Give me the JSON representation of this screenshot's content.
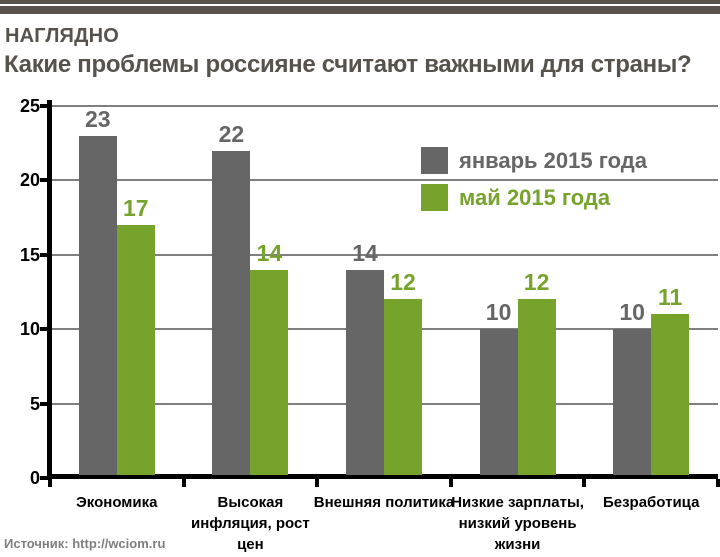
{
  "header": {
    "kicker": "НАГЛЯДНО",
    "title": "Какие проблемы россияне считают важными для страны?",
    "text_color": "#57524c"
  },
  "footer": {
    "source": "Источник: http://wciom.ru"
  },
  "colors": {
    "background": "#ffffff",
    "header_bars": "#57524c",
    "axis": "#000000",
    "gridline": "#7f7f7f",
    "source_text": "#7f7f7f"
  },
  "chart_data": {
    "type": "bar",
    "title": "Какие проблемы россияне считают важными для страны?",
    "categories": [
      "Экономика",
      "Высокая инфляция, рост цен",
      "Внешняя политика",
      "Низкие зарплаты, низкий уровень жизни",
      "Безработица"
    ],
    "category_lines": [
      [
        "Экономика"
      ],
      [
        "Высокая",
        "инфляция, рост",
        "цен"
      ],
      [
        "Внешняя политика"
      ],
      [
        "Низкие зарплаты,",
        "низкий уровень",
        "жизни"
      ],
      [
        "Безработица"
      ]
    ],
    "series": [
      {
        "name": "январь 2015 года",
        "color": "#666666",
        "values": [
          23,
          22,
          14,
          10,
          10
        ]
      },
      {
        "name": "май 2015 года",
        "color": "#76a32c",
        "values": [
          17,
          14,
          12,
          12,
          11
        ]
      }
    ],
    "ylim": [
      0,
      25
    ],
    "yticks": [
      0,
      5,
      10,
      15,
      20,
      25
    ],
    "grid": true,
    "value_labels": true,
    "legend_position": "inside-top-right"
  }
}
